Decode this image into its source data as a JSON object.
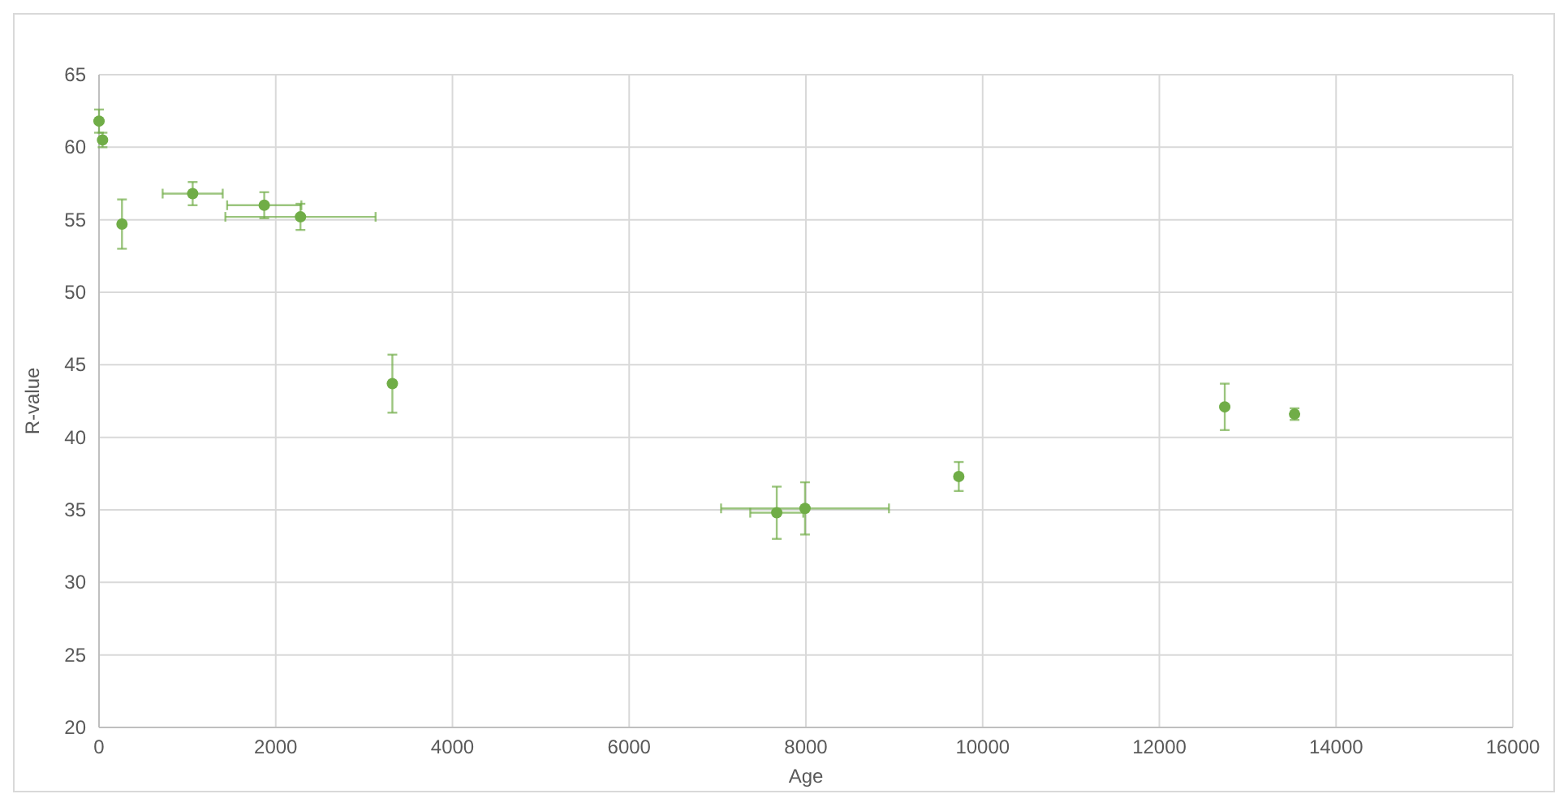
{
  "chart_data": {
    "type": "scatter",
    "xlabel": "Age",
    "ylabel": "R-value",
    "x": [
      0,
      40,
      260,
      1060,
      1870,
      2280,
      3320,
      7670,
      7990,
      9730,
      12740,
      13530
    ],
    "values": [
      61.8,
      60.5,
      54.7,
      56.8,
      56.0,
      55.2,
      43.7,
      34.8,
      35.1,
      37.3,
      42.1,
      41.6
    ],
    "errors": [
      0.8,
      0.5,
      1.7,
      0.8,
      0.9,
      0.9,
      2.0,
      1.8,
      1.8,
      1.0,
      1.6,
      0.4
    ],
    "xerrors": [
      null,
      null,
      null,
      340,
      420,
      850,
      null,
      300,
      950,
      null,
      null,
      null
    ],
    "color": "#70ad47",
    "marker": "circle",
    "grid": true,
    "xlim": [
      0,
      16000
    ],
    "xticks": [
      0,
      2000,
      4000,
      6000,
      8000,
      10000,
      12000,
      14000,
      16000
    ],
    "ylim": [
      20,
      65
    ],
    "yticks": [
      20,
      25,
      30,
      35,
      40,
      45,
      50,
      55,
      60,
      65
    ]
  }
}
